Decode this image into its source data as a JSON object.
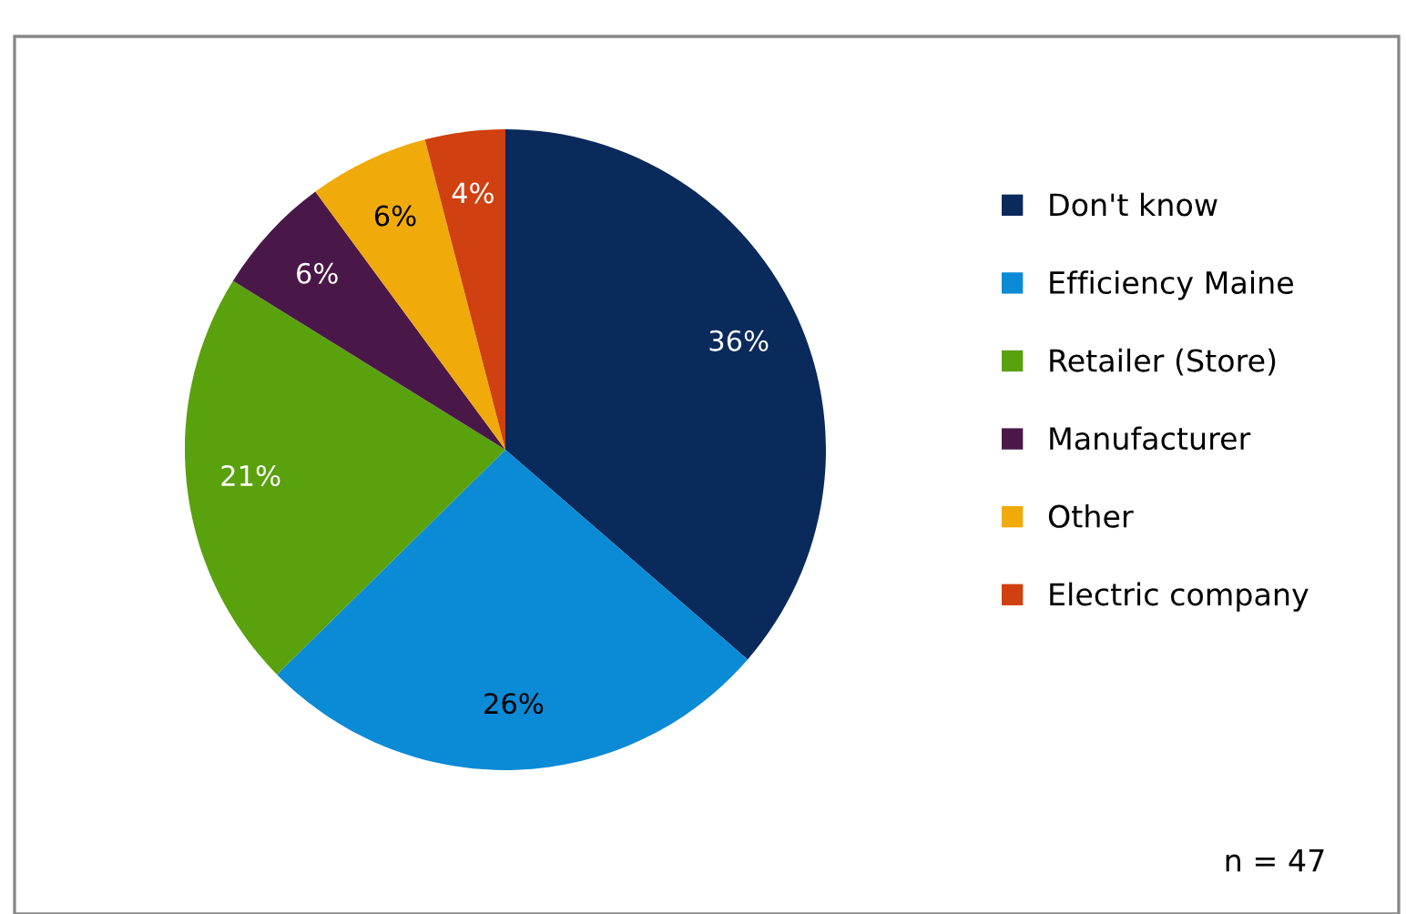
{
  "chart_data": {
    "type": "pie",
    "categories": [
      "Don't know",
      "Efficiency Maine",
      "Retailer (Store)",
      "Manufacturer",
      "Other",
      "Electric company"
    ],
    "values": [
      36,
      26,
      21,
      6,
      6,
      4
    ],
    "colors": [
      "#0b2a5c",
      "#0b8ad6",
      "#5aa10e",
      "#4a1848",
      "#f0aa0a",
      "#d04010"
    ],
    "value_labels": [
      "36%",
      "26%",
      "21%",
      "6%",
      "6%",
      "4%"
    ],
    "legend": "right",
    "annotations": [
      "n = 47"
    ]
  }
}
